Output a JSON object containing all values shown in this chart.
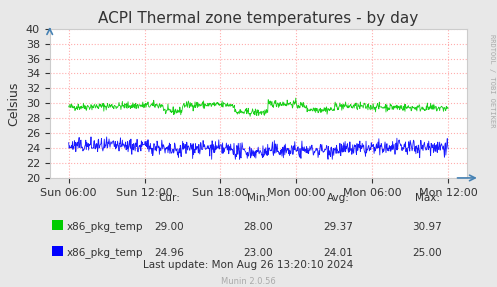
{
  "title": "ACPI Thermal zone temperatures - by day",
  "ylabel": "Celsius",
  "background_color": "#e8e8e8",
  "plot_bg_color": "#ffffff",
  "grid_color": "#ff9999",
  "ylim": [
    20,
    40
  ],
  "xtick_labels": [
    "Sun 06:00",
    "Sun 12:00",
    "Sun 18:00",
    "Mon 00:00",
    "Mon 06:00",
    "Mon 12:00"
  ],
  "series": [
    {
      "label": "x86_pkg_temp",
      "color": "#00cc00"
    },
    {
      "label": "x86_pkg_temp",
      "color": "#0000ff"
    }
  ],
  "legend_entries": [
    {
      "label": "x86_pkg_temp",
      "color": "#00cc00",
      "cur": "29.00",
      "min": "28.00",
      "avg": "29.37",
      "max": "30.97"
    },
    {
      "label": "x86_pkg_temp",
      "color": "#0000ff",
      "cur": "24.96",
      "min": "23.00",
      "avg": "24.01",
      "max": "25.00"
    }
  ],
  "last_update": "Last update: Mon Aug 26 13:20:10 2024",
  "munin_version": "Munin 2.0.56",
  "rrdtool_text": "RRDTOOL / TOBI OETIKER",
  "title_fontsize": 11,
  "axis_fontsize": 8,
  "legend_fontsize": 7.5
}
